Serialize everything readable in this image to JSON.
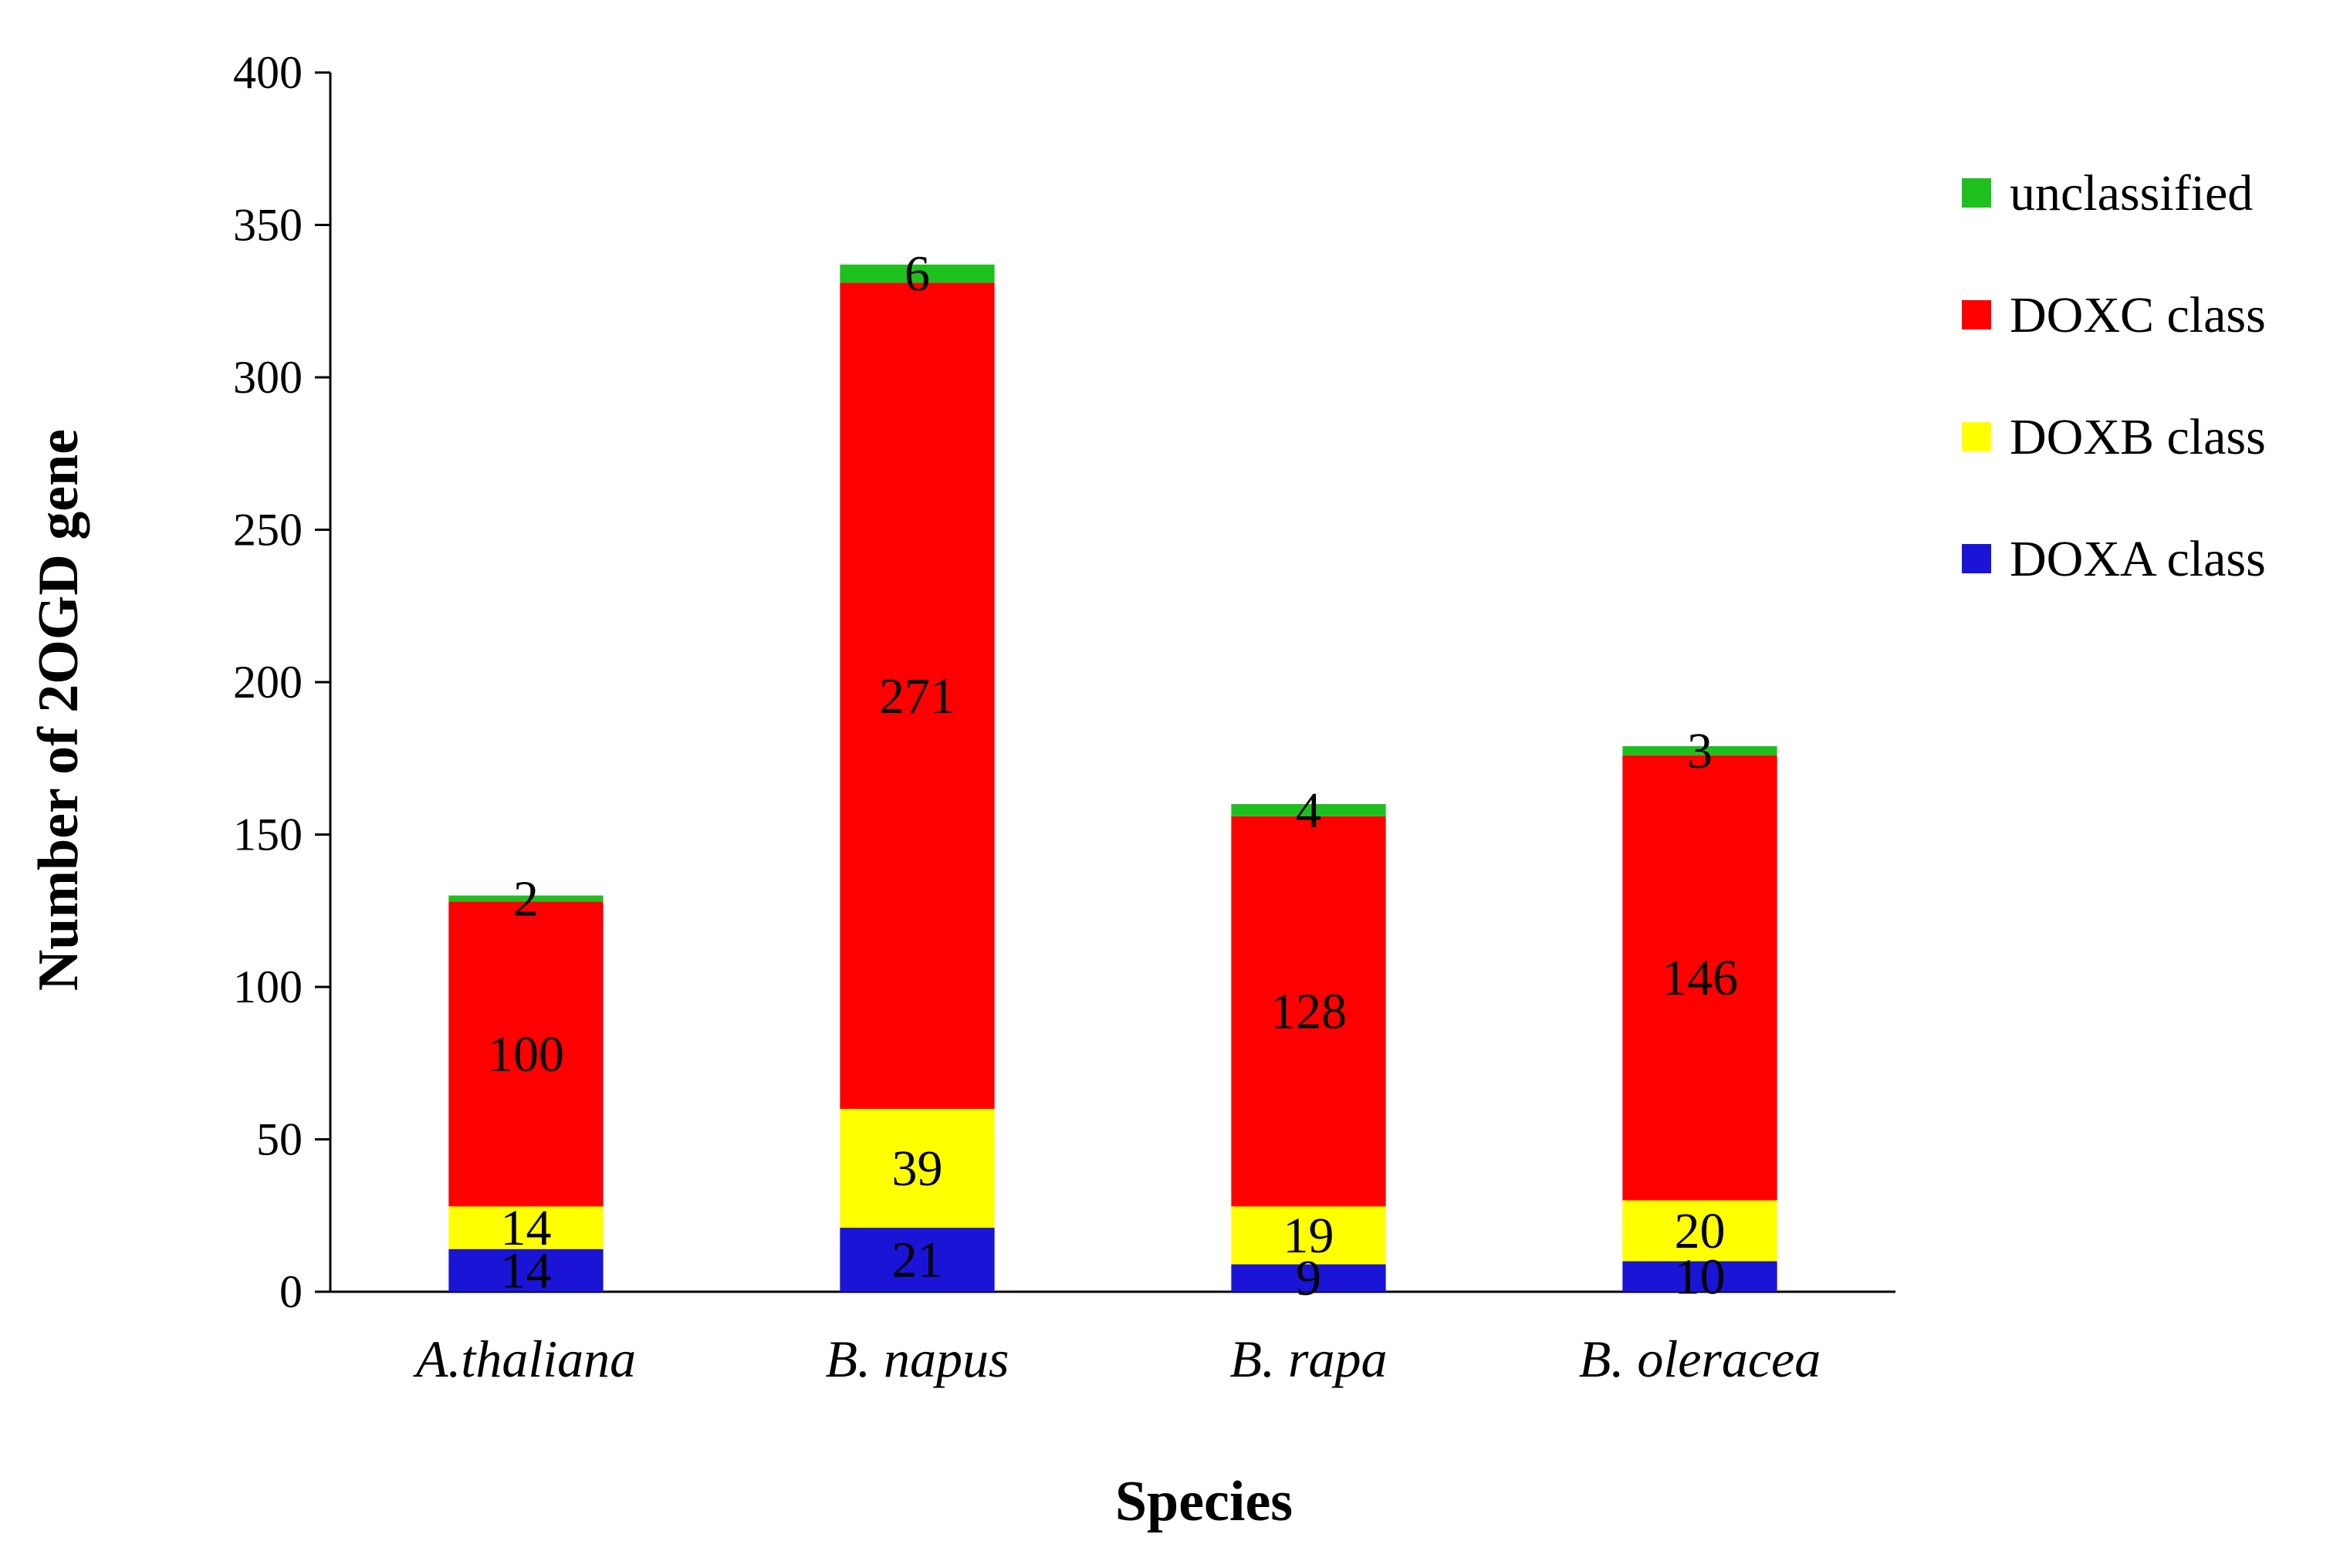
{
  "chart_data": {
    "type": "bar",
    "stacked": true,
    "title": "",
    "xlabel": "Species",
    "ylabel": "Number of 2OGD gene",
    "ylim": [
      0,
      400
    ],
    "yticks": [
      0,
      50,
      100,
      150,
      200,
      250,
      300,
      350,
      400
    ],
    "categories": [
      "A.thaliana",
      "B. napus",
      "B. rapa",
      "B. oleracea"
    ],
    "series": [
      {
        "name": "DOXA class",
        "color": "#1a14d6",
        "values": [
          14,
          21,
          9,
          10
        ]
      },
      {
        "name": "DOXB class",
        "color": "#ffff00",
        "values": [
          14,
          39,
          19,
          20
        ]
      },
      {
        "name": "DOXC class",
        "color": "#ff0000",
        "values": [
          100,
          271,
          128,
          146
        ]
      },
      {
        "name": "unclassified",
        "color": "#1ec01e",
        "values": [
          2,
          6,
          4,
          3
        ]
      }
    ],
    "legend_position": "top-right",
    "legend_order": [
      "unclassified",
      "DOXC class",
      "DOXB class",
      "DOXA class"
    ],
    "grid": false
  }
}
